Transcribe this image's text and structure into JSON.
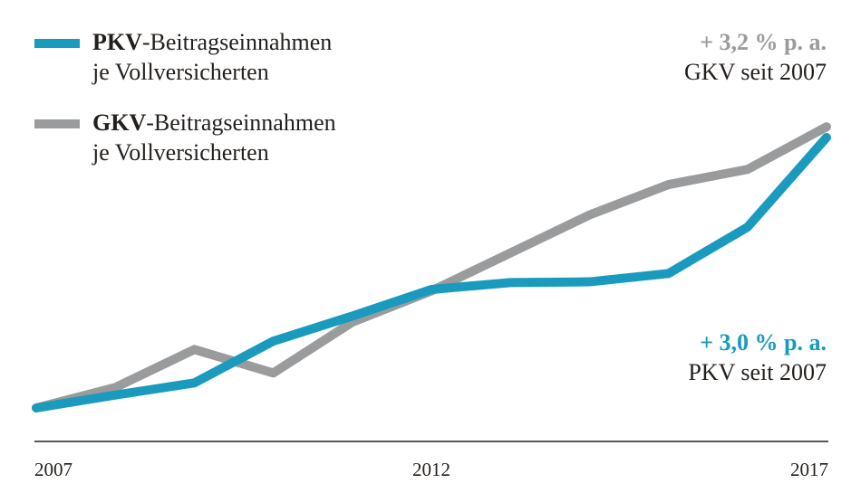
{
  "chart_data": {
    "type": "line",
    "x": [
      2007,
      2008,
      2009,
      2010,
      2011,
      2012,
      2013,
      2014,
      2015,
      2016,
      2017
    ],
    "xtick_labels": [
      "2007",
      "2012",
      "2017"
    ],
    "ylim": [
      97,
      140
    ],
    "grid": false,
    "legend_placement": "top-left",
    "series": [
      {
        "name_bold": "PKV",
        "name_rest": "-Beitragseinnahmen",
        "name_line2": "je Vollversicherten",
        "color": "#1a9bbd",
        "values": [
          100,
          101.7,
          103.3,
          108.8,
          112.1,
          115.6,
          116.5,
          116.6,
          117.7,
          123.8,
          135.6
        ]
      },
      {
        "name_bold": "GKV",
        "name_rest": "-Beitragseinnahmen",
        "name_line2": "je Vollversicherten",
        "color": "#9a9b9c",
        "values": [
          100,
          102.7,
          107.7,
          104.6,
          111.3,
          115.4,
          120.4,
          125.4,
          129.4,
          131.4,
          137.0
        ]
      }
    ],
    "annotations": {
      "gkv": {
        "rate": "+ 3,2 % p. a.",
        "label": "GKV seit 2007",
        "color": "#9a9b9c"
      },
      "pkv": {
        "rate": "+ 3,0 % p. a.",
        "label": "PKV seit 2007",
        "color": "#1a9bbd"
      }
    }
  }
}
